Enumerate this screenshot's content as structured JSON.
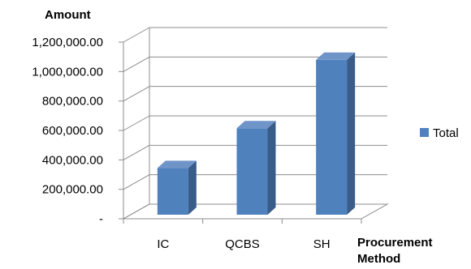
{
  "chart_data": {
    "type": "bar",
    "style": "3d-column",
    "title": "",
    "ylabel": "Amount",
    "xlabel": "Procurement Method",
    "categories": [
      "IC",
      "QCBS",
      "SH"
    ],
    "series": [
      {
        "name": "Total",
        "values": [
          345000,
          615000,
          1080000
        ],
        "color": "#4f81bd"
      }
    ],
    "ylim": [
      0,
      1200000
    ],
    "yticks": [
      {
        "value": 0,
        "label": "-"
      },
      {
        "value": 200000,
        "label": "200,000.00"
      },
      {
        "value": 400000,
        "label": "400,000.00"
      },
      {
        "value": 600000,
        "label": "600,000.00"
      },
      {
        "value": 800000,
        "label": "800,000.00"
      },
      {
        "value": 1000000,
        "label": "1,000,000.00"
      },
      {
        "value": 1200000,
        "label": "1,200,000.00"
      }
    ],
    "grid": true,
    "legend": "right"
  }
}
